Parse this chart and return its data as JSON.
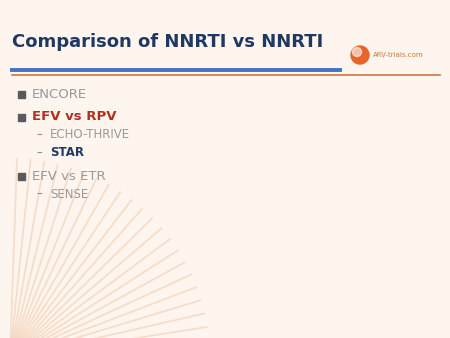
{
  "title": "Comparison of NNRTI vs NNRTI",
  "title_color": "#1F3864",
  "title_fontsize": 13,
  "bg_color": "#FEF5EE",
  "header_line_color_blue": "#4472C4",
  "header_line_color_orange": "#C87941",
  "logo_text": "ARV-trials.com",
  "logo_circle_color": "#E8642A",
  "bullet_sq_color": "#5A5A5A",
  "items": [
    {
      "text": "ENCORE",
      "level": 1,
      "color": "#999999",
      "bold": false
    },
    {
      "text": "EFV vs RPV",
      "level": 1,
      "color": "#B03020",
      "bold": true
    },
    {
      "text": "ECHO-THRIVE",
      "level": 2,
      "color": "#999999",
      "bold": false
    },
    {
      "text": "STAR",
      "level": 2,
      "color": "#1F3864",
      "bold": true
    },
    {
      "text": "EFV vs ETR",
      "level": 1,
      "color": "#999999",
      "bold": false
    },
    {
      "text": "SENSE",
      "level": 2,
      "color": "#999999",
      "bold": false
    }
  ],
  "sunburst_color": "#F0CAAC",
  "sunburst_alpha": 0.55
}
